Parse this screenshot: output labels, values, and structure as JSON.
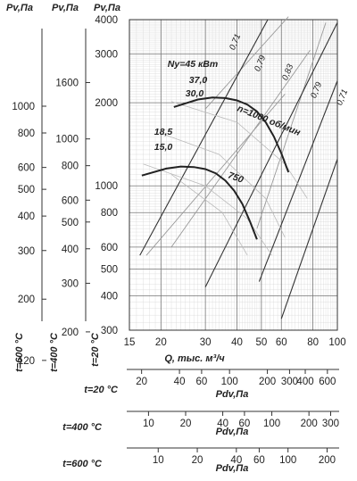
{
  "chart_data": {
    "type": "line",
    "xlabel": "Q, тыс. м³/ч",
    "ylabel": "Pv,Па",
    "x_ticks": [
      15,
      20,
      30,
      40,
      50,
      60,
      80,
      100
    ],
    "y_ticks": [
      300,
      400,
      500,
      600,
      800,
      1000,
      2000,
      3000,
      4000
    ],
    "xlim": [
      15,
      100
    ],
    "ylim": [
      300,
      4000
    ],
    "x_scale": "log",
    "y_scale": "log",
    "grid": true,
    "temp_label_main": "t=20 °C",
    "left_scales": [
      {
        "label": "Pv,Па",
        "temp": "t=600 °C",
        "ticks": [
          "1000",
          "800",
          "600",
          "500",
          "400",
          "300",
          "200",
          "120"
        ],
        "values": [
          1000,
          800,
          600,
          500,
          400,
          300,
          200,
          120
        ]
      },
      {
        "label": "Pv,Па",
        "temp": "t=400 °C",
        "ticks": [
          "1600",
          "1000",
          "800",
          "600",
          "500",
          "400",
          "300",
          "200"
        ],
        "values": [
          1600,
          1000,
          800,
          600,
          500,
          400,
          300,
          200
        ]
      }
    ],
    "bottom_scales": [
      {
        "temp": "t=20 °C",
        "label": "Pdv,Па",
        "ticks": [
          "20",
          "40",
          "60",
          "100",
          "200",
          "300",
          "400",
          "600"
        ],
        "values": [
          20,
          40,
          60,
          100,
          200,
          300,
          400,
          600
        ]
      },
      {
        "temp": "t=400 °C",
        "label": "Pdv,Па",
        "ticks": [
          "10",
          "20",
          "40",
          "60",
          "100",
          "200",
          "300"
        ],
        "values": [
          10,
          20,
          40,
          60,
          100,
          200,
          300
        ]
      },
      {
        "temp": "t=600 °C",
        "label": "Pdv,Па",
        "ticks": [
          "10",
          "20",
          "40",
          "60",
          "100",
          "200"
        ],
        "values": [
          10,
          20,
          40,
          60,
          100,
          200
        ]
      }
    ],
    "series": [
      {
        "name": "n=1000 об/мин",
        "x": [
          22.5,
          28,
          32,
          36,
          40,
          44,
          48,
          52,
          56,
          60,
          64
        ],
        "y": [
          1930,
          2055,
          2090,
          2080,
          2040,
          1970,
          1860,
          1700,
          1510,
          1310,
          1120
        ]
      },
      {
        "name": "750",
        "x": [
          16.8,
          21,
          24,
          27,
          30,
          33,
          36,
          39,
          42,
          45,
          48
        ],
        "y": [
          1090,
          1155,
          1175,
          1170,
          1150,
          1110,
          1045,
          960,
          860,
          745,
          640
        ]
      }
    ],
    "power_labels": [
      "Nу=45 кВт",
      "37,0",
      "30,0",
      "18,5",
      "15,0"
    ],
    "efficiency_labels": [
      "0,71",
      "0,79",
      "0,83",
      "0,79",
      "0,71"
    ]
  }
}
